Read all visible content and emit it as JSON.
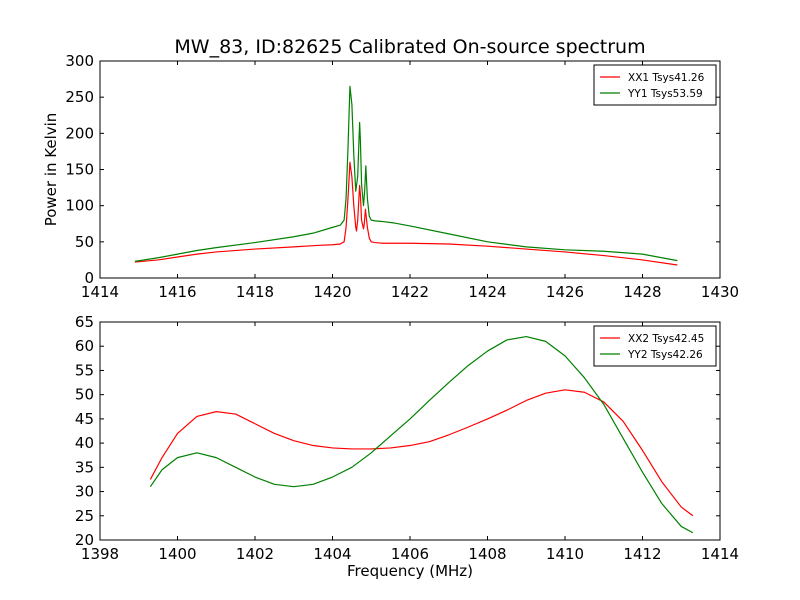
{
  "figure": {
    "title": "MW_83, ID:82625 Calibrated On-source spectrum"
  },
  "chart_data": [
    {
      "type": "line",
      "title": "MW_83, ID:82625 Calibrated On-source spectrum",
      "xlabel": "",
      "ylabel": "Power in Kelvin",
      "xlim": [
        1414,
        1430
      ],
      "ylim": [
        0,
        300
      ],
      "xticks": [
        1414,
        1416,
        1418,
        1420,
        1422,
        1424,
        1426,
        1428,
        1430
      ],
      "yticks": [
        0,
        50,
        100,
        150,
        200,
        250,
        300
      ],
      "grid": false,
      "legend_position": "top-right",
      "series": [
        {
          "name": "XX1 Tsys41.26",
          "color": "#ff0000",
          "x": [
            1414.9,
            1415.5,
            1416.0,
            1416.5,
            1417.0,
            1418.0,
            1419.0,
            1419.6,
            1420.0,
            1420.2,
            1420.3,
            1420.35,
            1420.4,
            1420.45,
            1420.5,
            1420.55,
            1420.6,
            1420.62,
            1420.65,
            1420.7,
            1420.72,
            1420.75,
            1420.8,
            1420.82,
            1420.85,
            1420.9,
            1420.95,
            1421.0,
            1421.1,
            1421.3,
            1421.6,
            1422.0,
            1423.0,
            1424.0,
            1425.0,
            1426.0,
            1427.0,
            1428.0,
            1428.9
          ],
          "y": [
            22,
            25,
            29,
            33,
            36,
            40,
            43,
            45,
            46,
            47,
            50,
            70,
            110,
            160,
            140,
            100,
            70,
            65,
            80,
            128,
            115,
            80,
            68,
            75,
            95,
            70,
            55,
            50,
            49,
            48,
            48,
            48,
            47,
            44,
            40,
            36,
            31,
            25,
            18
          ]
        },
        {
          "name": "YY1 Tsys53.59",
          "color": "#008000",
          "x": [
            1414.9,
            1415.5,
            1416.0,
            1416.5,
            1417.0,
            1418.0,
            1419.0,
            1419.5,
            1420.0,
            1420.2,
            1420.3,
            1420.35,
            1420.4,
            1420.45,
            1420.5,
            1420.55,
            1420.6,
            1420.65,
            1420.7,
            1420.72,
            1420.75,
            1420.8,
            1420.83,
            1420.86,
            1420.9,
            1420.95,
            1421.0,
            1421.1,
            1421.3,
            1421.6,
            1422.0,
            1423.0,
            1424.0,
            1425.0,
            1426.0,
            1427.0,
            1428.0,
            1428.9
          ],
          "y": [
            23,
            28,
            33,
            38,
            42,
            49,
            57,
            62,
            70,
            73,
            80,
            110,
            180,
            265,
            240,
            170,
            120,
            140,
            215,
            190,
            130,
            100,
            120,
            155,
            110,
            85,
            80,
            79,
            78,
            76,
            72,
            61,
            50,
            43,
            39,
            37,
            33,
            24
          ]
        }
      ]
    },
    {
      "type": "line",
      "title": "",
      "xlabel": "Frequency (MHz)",
      "ylabel": "",
      "xlim": [
        1398,
        1414
      ],
      "ylim": [
        20,
        65
      ],
      "xticks": [
        1398,
        1400,
        1402,
        1404,
        1406,
        1408,
        1410,
        1412,
        1414
      ],
      "yticks": [
        20,
        25,
        30,
        35,
        40,
        45,
        50,
        55,
        60,
        65
      ],
      "grid": false,
      "legend_position": "top-right",
      "series": [
        {
          "name": "XX2 Tsys42.45",
          "color": "#ff0000",
          "x": [
            1399.3,
            1399.6,
            1400.0,
            1400.5,
            1401.0,
            1401.5,
            1402.0,
            1402.5,
            1403.0,
            1403.5,
            1404.0,
            1404.5,
            1405.0,
            1405.5,
            1406.0,
            1406.5,
            1407.0,
            1407.5,
            1408.0,
            1408.5,
            1409.0,
            1409.5,
            1410.0,
            1410.5,
            1411.0,
            1411.5,
            1412.0,
            1412.5,
            1413.0,
            1413.3
          ],
          "y": [
            32.5,
            37.0,
            42.0,
            45.5,
            46.5,
            46.0,
            44.0,
            42.0,
            40.5,
            39.5,
            39.0,
            38.8,
            38.8,
            39.0,
            39.5,
            40.3,
            41.7,
            43.3,
            45.0,
            46.8,
            48.8,
            50.3,
            51.0,
            50.5,
            48.5,
            44.5,
            38.5,
            32.0,
            26.8,
            25.0
          ]
        },
        {
          "name": "YY2 Tsys42.26",
          "color": "#008000",
          "x": [
            1399.3,
            1399.6,
            1400.0,
            1400.5,
            1401.0,
            1401.5,
            1402.0,
            1402.5,
            1403.0,
            1403.5,
            1404.0,
            1404.5,
            1405.0,
            1405.5,
            1406.0,
            1406.5,
            1407.0,
            1407.5,
            1408.0,
            1408.5,
            1409.0,
            1409.5,
            1410.0,
            1410.5,
            1411.0,
            1411.5,
            1412.0,
            1412.5,
            1413.0,
            1413.3
          ],
          "y": [
            31.0,
            34.5,
            37.0,
            38.0,
            37.0,
            35.0,
            33.0,
            31.5,
            31.0,
            31.5,
            33.0,
            35.0,
            38.0,
            41.5,
            45.0,
            48.8,
            52.5,
            56.0,
            59.0,
            61.3,
            62.0,
            61.0,
            58.0,
            53.5,
            48.0,
            41.0,
            34.0,
            27.5,
            22.8,
            21.5
          ]
        }
      ]
    }
  ]
}
